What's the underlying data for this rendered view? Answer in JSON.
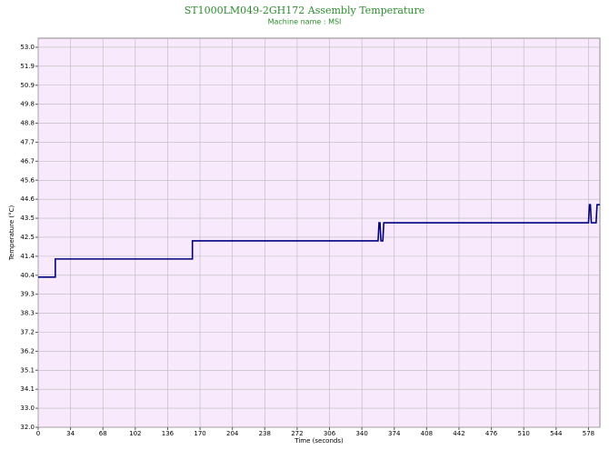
{
  "chart_data": {
    "type": "line",
    "title": "ST1000LM049-2GH172 Assembly Temperature",
    "subtitle": "Machine name : MSI",
    "x_label": "Time (seconds)",
    "y_label": "Temperature (°C)",
    "x": [
      0,
      18,
      18,
      162,
      162,
      357,
      358,
      359,
      360,
      362,
      363,
      578,
      579,
      580,
      581,
      586,
      587,
      590
    ],
    "series": [
      {
        "color": "#000080",
        "values": [
          40.3,
          40.3,
          41.3,
          41.3,
          42.3,
          42.3,
          43.3,
          43.3,
          42.3,
          42.3,
          43.3,
          43.3,
          44.3,
          44.3,
          43.3,
          43.3,
          44.3,
          44.3
        ]
      }
    ],
    "xlim": [
      0,
      590
    ],
    "xticks": [
      0,
      34,
      68,
      102,
      136,
      170,
      204,
      238,
      272,
      306,
      340,
      374,
      408,
      442,
      476,
      510,
      544,
      578
    ],
    "ylim": [
      32,
      53.5
    ],
    "yticks": [
      {
        "value": 32,
        "label": "32.0"
      },
      {
        "value": 33.05,
        "label": "33.0"
      },
      {
        "value": 34.1,
        "label": "34.1"
      },
      {
        "value": 35.15,
        "label": "35.1"
      },
      {
        "value": 36.2,
        "label": "36.2"
      },
      {
        "value": 37.25,
        "label": "37.2"
      },
      {
        "value": 38.3,
        "label": "38.3"
      },
      {
        "value": 39.35,
        "label": "39.3"
      },
      {
        "value": 40.4,
        "label": "40.4"
      },
      {
        "value": 41.45,
        "label": "41.4"
      },
      {
        "value": 42.5,
        "label": "42.5"
      },
      {
        "value": 43.55,
        "label": "43.5"
      },
      {
        "value": 44.6,
        "label": "44.6"
      },
      {
        "value": 45.65,
        "label": "45.6"
      },
      {
        "value": 46.7,
        "label": "46.7"
      },
      {
        "value": 47.75,
        "label": "47.7"
      },
      {
        "value": 48.8,
        "label": "48.8"
      },
      {
        "value": 49.85,
        "label": "49.8"
      },
      {
        "value": 50.9,
        "label": "50.9"
      },
      {
        "value": 51.95,
        "label": "51.9"
      },
      {
        "value": 53.0,
        "label": "53.0"
      }
    ],
    "grid": true,
    "background": "#f8eafc"
  }
}
